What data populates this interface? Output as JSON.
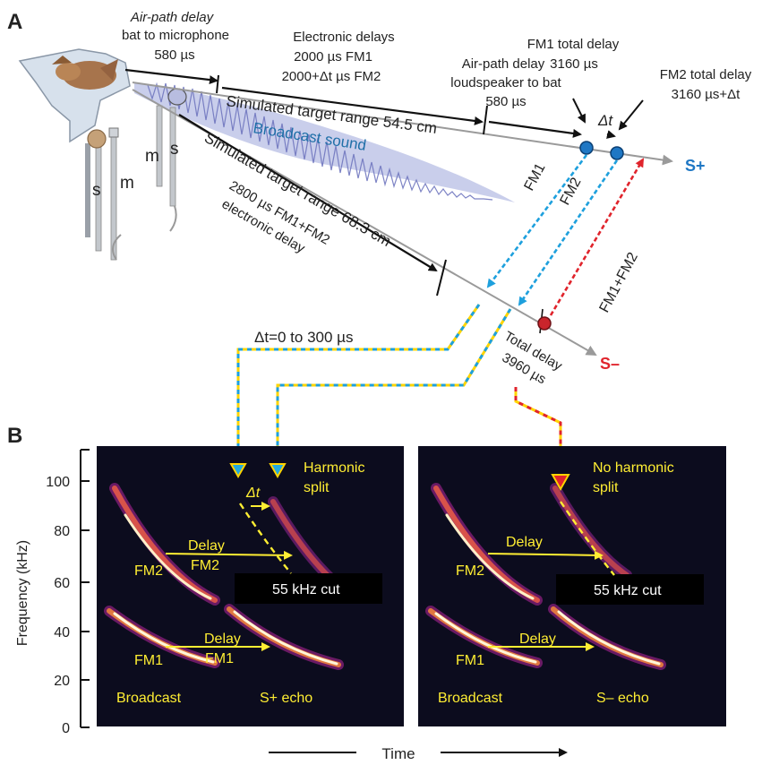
{
  "panel_a": {
    "letter": "A",
    "air_path_mic": [
      "Air-path delay",
      "bat to microphone",
      "580 µs"
    ],
    "electronic": [
      "Electronic delays",
      "2000 µs  FM1",
      "2000+Δt µs  FM2"
    ],
    "air_path_speaker": [
      "Air-path delay",
      "loudspeaker to bat",
      "580 µs"
    ],
    "fm1_total": [
      "FM1 total delay",
      "3160 µs"
    ],
    "fm2_total": [
      "FM2 total delay",
      "3160 µs+Δt"
    ],
    "delta_t": "Δt",
    "sim_range_plus": "Simulated target range 54.5 cm",
    "broadcast_sound": "Broadcast sound",
    "sim_range_minus": "Simulated target range 68.3 cm",
    "fm12_electronic": [
      "2800 µs  FM1+FM2",
      "electronic delay"
    ],
    "fm1": "FM1",
    "fm2": "FM2",
    "fm1_fm2": "FM1+FM2",
    "s_plus": "S+",
    "s_minus": "S–",
    "total_delay": [
      "Total delay",
      "3960 µs"
    ],
    "delta_range": "Δt=0 to 300 µs",
    "s_label_1": "s",
    "m_label_1": "m",
    "s_label_2": "s",
    "m_label_2": "m",
    "colors": {
      "s_plus": "#1f77c4",
      "s_minus": "#e0242c",
      "fm1_arrow": "#22aadd",
      "fm_red": "#e0242c",
      "broadcast": "#7a84c8"
    }
  },
  "panel_b": {
    "letter": "B",
    "y_axis_label": "Frequency (kHz)",
    "y_ticks": [
      "0",
      "20",
      "40",
      "60",
      "80",
      "100"
    ],
    "x_axis_label": "Time",
    "left": {
      "title": [
        "Harmonic",
        "split"
      ],
      "delta_t": "Δt",
      "delay_fm2": [
        "Delay",
        "FM2"
      ],
      "delay_fm1": [
        "Delay",
        "FM1"
      ],
      "fm2": "FM2",
      "fm1": "FM1",
      "cut": "55 kHz  cut",
      "broadcast": "Broadcast",
      "echo": "S+ echo"
    },
    "right": {
      "title": [
        "No harmonic",
        "split"
      ],
      "delay_top": "Delay",
      "delay_bottom": "Delay",
      "fm2": "FM2",
      "fm1": "FM1",
      "cut": "55 kHz  cut",
      "broadcast": "Broadcast",
      "echo": "S– echo"
    }
  }
}
